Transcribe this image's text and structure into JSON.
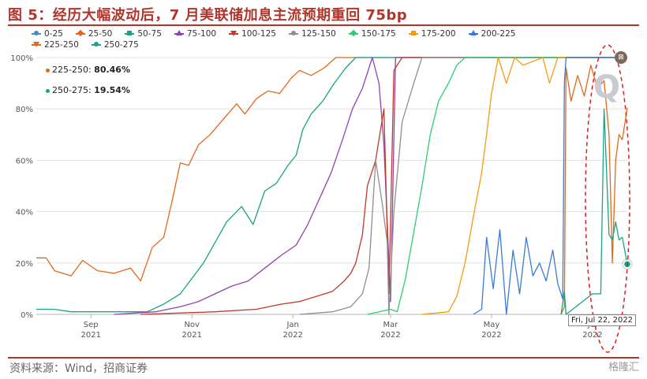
{
  "title": "图 5：经历大幅波动后，7 月美联储加息主流预期重回 75bp",
  "source": "资料来源：Wind，招商证券",
  "watermark": "格隆汇",
  "tooltip": {
    "date": "Fri, Jul 22, 2022",
    "rows": [
      {
        "label": "225-250:",
        "value": "80.46%",
        "color": "#e06a1b"
      },
      {
        "label": "250-275:",
        "value": "19.54%",
        "color": "#1aa384"
      }
    ]
  },
  "legend": [
    {
      "label": "0-25",
      "color": "#4a86c8",
      "marker": "dot"
    },
    {
      "label": "25-50",
      "color": "#e06a1b",
      "marker": "dia"
    },
    {
      "label": "50-75",
      "color": "#1aa384",
      "marker": "sq"
    },
    {
      "label": "75-100",
      "color": "#8e44ad",
      "marker": "tri"
    },
    {
      "label": "100-125",
      "color": "#c0392b",
      "marker": "tri-down"
    },
    {
      "label": "125-150",
      "color": "#8f8f8f",
      "marker": "dot"
    },
    {
      "label": "150-175",
      "color": "#2ecc71",
      "marker": "dia"
    },
    {
      "label": "175-200",
      "color": "#f39c12",
      "marker": "sq"
    },
    {
      "label": "200-225",
      "color": "#3a7bd5",
      "marker": "tri"
    },
    {
      "label": "225-250",
      "color": "#e06a1b",
      "marker": "tri-down"
    },
    {
      "label": "250-275",
      "color": "#1aa384",
      "marker": "dot"
    }
  ],
  "chart_data": {
    "type": "line",
    "xlabel": "",
    "ylabel": "",
    "ylim": [
      0,
      100
    ],
    "y_ticks": [
      "0%",
      "20%",
      "40%",
      "60%",
      "80%",
      "100%"
    ],
    "x_ticks": [
      {
        "label1": "Sep",
        "label2": "2021",
        "date": "2021-09-01"
      },
      {
        "label1": "Nov",
        "label2": "2021",
        "date": "2021-11-01"
      },
      {
        "label1": "Jan",
        "label2": "2022",
        "date": "2022-01-01"
      },
      {
        "label1": "Mar",
        "label2": "2022",
        "date": "2022-03-01"
      },
      {
        "label1": "May",
        "label2": "2022",
        "date": "2022-05-01"
      },
      {
        "label1": "Jul",
        "label2": "2022",
        "date": "2022-07-01"
      }
    ],
    "xlim": [
      "2021-07-30",
      "2022-07-22"
    ],
    "series": [
      {
        "name": "25-50",
        "color": "#e06a1b",
        "points": [
          [
            "2021-07-30",
            22
          ],
          [
            "2021-08-05",
            22
          ],
          [
            "2021-08-10",
            17
          ],
          [
            "2021-08-20",
            15
          ],
          [
            "2021-08-27",
            21
          ],
          [
            "2021-09-05",
            17
          ],
          [
            "2021-09-15",
            16
          ],
          [
            "2021-09-25",
            18
          ],
          [
            "2021-10-01",
            13
          ],
          [
            "2021-10-08",
            26
          ],
          [
            "2021-10-15",
            30
          ],
          [
            "2021-10-20",
            44
          ],
          [
            "2021-10-25",
            59
          ],
          [
            "2021-10-30",
            58
          ],
          [
            "2021-11-05",
            66
          ],
          [
            "2021-11-12",
            70
          ],
          [
            "2021-11-20",
            76
          ],
          [
            "2021-11-28",
            82
          ],
          [
            "2021-12-03",
            78
          ],
          [
            "2021-12-10",
            84
          ],
          [
            "2021-12-17",
            87
          ],
          [
            "2021-12-24",
            86
          ],
          [
            "2021-12-31",
            92
          ],
          [
            "2022-01-05",
            95
          ],
          [
            "2022-01-12",
            93
          ],
          [
            "2022-01-20",
            96
          ],
          [
            "2022-01-27",
            100
          ],
          [
            "2022-02-03",
            100
          ],
          [
            "2022-03-10",
            100
          ],
          [
            "2022-07-22",
            100
          ]
        ]
      },
      {
        "name": "50-75",
        "color": "#1aa384",
        "points": [
          [
            "2021-07-30",
            2
          ],
          [
            "2021-08-10",
            2
          ],
          [
            "2021-08-20",
            1
          ],
          [
            "2021-09-15",
            1
          ],
          [
            "2021-10-05",
            1
          ],
          [
            "2021-10-15",
            4
          ],
          [
            "2021-10-25",
            8
          ],
          [
            "2021-11-01",
            14
          ],
          [
            "2021-11-08",
            20
          ],
          [
            "2021-11-15",
            28
          ],
          [
            "2021-11-22",
            36
          ],
          [
            "2021-12-01",
            42
          ],
          [
            "2021-12-08",
            35
          ],
          [
            "2021-12-15",
            48
          ],
          [
            "2021-12-22",
            51
          ],
          [
            "2021-12-29",
            58
          ],
          [
            "2022-01-03",
            62
          ],
          [
            "2022-01-07",
            72
          ],
          [
            "2022-01-12",
            78
          ],
          [
            "2022-01-19",
            83
          ],
          [
            "2022-01-26",
            90
          ],
          [
            "2022-02-02",
            96
          ],
          [
            "2022-02-08",
            100
          ],
          [
            "2022-03-10",
            100
          ],
          [
            "2022-07-22",
            100
          ]
        ]
      },
      {
        "name": "75-100",
        "color": "#8e44ad",
        "points": [
          [
            "2021-09-15",
            0
          ],
          [
            "2021-10-10",
            1
          ],
          [
            "2021-10-25",
            3
          ],
          [
            "2021-11-05",
            5
          ],
          [
            "2021-11-15",
            8
          ],
          [
            "2021-11-25",
            11
          ],
          [
            "2021-12-05",
            13
          ],
          [
            "2021-12-15",
            18
          ],
          [
            "2021-12-25",
            23
          ],
          [
            "2022-01-03",
            27
          ],
          [
            "2022-01-10",
            35
          ],
          [
            "2022-01-17",
            45
          ],
          [
            "2022-01-24",
            55
          ],
          [
            "2022-01-31",
            68
          ],
          [
            "2022-02-06",
            80
          ],
          [
            "2022-02-12",
            88
          ],
          [
            "2022-02-18",
            100
          ],
          [
            "2022-02-22",
            90
          ],
          [
            "2022-02-25",
            66
          ],
          [
            "2022-03-01",
            5
          ],
          [
            "2022-03-04",
            100
          ],
          [
            "2022-07-22",
            100
          ]
        ]
      },
      {
        "name": "100-125",
        "color": "#c0392b",
        "points": [
          [
            "2021-10-01",
            0
          ],
          [
            "2021-11-15",
            1
          ],
          [
            "2021-12-10",
            2
          ],
          [
            "2021-12-25",
            4
          ],
          [
            "2022-01-05",
            5
          ],
          [
            "2022-01-15",
            7
          ],
          [
            "2022-01-25",
            9
          ],
          [
            "2022-02-01",
            13
          ],
          [
            "2022-02-05",
            16
          ],
          [
            "2022-02-08",
            20
          ],
          [
            "2022-02-12",
            31
          ],
          [
            "2022-02-15",
            50
          ],
          [
            "2022-02-20",
            60
          ],
          [
            "2022-02-25",
            80
          ],
          [
            "2022-02-28",
            8
          ],
          [
            "2022-03-03",
            95
          ],
          [
            "2022-03-08",
            100
          ],
          [
            "2022-07-22",
            100
          ]
        ]
      },
      {
        "name": "125-150",
        "color": "#8f8f8f",
        "points": [
          [
            "2022-01-05",
            0
          ],
          [
            "2022-01-25",
            1
          ],
          [
            "2022-02-05",
            3
          ],
          [
            "2022-02-12",
            8
          ],
          [
            "2022-02-16",
            18
          ],
          [
            "2022-02-20",
            60
          ],
          [
            "2022-02-24",
            43
          ],
          [
            "2022-02-27",
            28
          ],
          [
            "2022-02-28",
            0
          ],
          [
            "2022-03-03",
            40
          ],
          [
            "2022-03-08",
            75
          ],
          [
            "2022-03-15",
            90
          ],
          [
            "2022-03-20",
            100
          ],
          [
            "2022-07-22",
            100
          ]
        ]
      },
      {
        "name": "150-175",
        "color": "#2ecc71",
        "points": [
          [
            "2022-02-15",
            0
          ],
          [
            "2022-03-01",
            2
          ],
          [
            "2022-03-05",
            1
          ],
          [
            "2022-03-10",
            14
          ],
          [
            "2022-03-15",
            32
          ],
          [
            "2022-03-20",
            50
          ],
          [
            "2022-03-25",
            70
          ],
          [
            "2022-03-30",
            83
          ],
          [
            "2022-04-05",
            90
          ],
          [
            "2022-04-10",
            97
          ],
          [
            "2022-04-15",
            100
          ],
          [
            "2022-07-22",
            100
          ]
        ]
      },
      {
        "name": "175-200",
        "color": "#f39c12",
        "points": [
          [
            "2022-03-20",
            0
          ],
          [
            "2022-04-05",
            1
          ],
          [
            "2022-04-10",
            7
          ],
          [
            "2022-04-15",
            20
          ],
          [
            "2022-04-20",
            38
          ],
          [
            "2022-04-25",
            55
          ],
          [
            "2022-04-28",
            70
          ],
          [
            "2022-05-01",
            86
          ],
          [
            "2022-05-05",
            100
          ],
          [
            "2022-05-10",
            90
          ],
          [
            "2022-05-15",
            100
          ],
          [
            "2022-05-20",
            97
          ],
          [
            "2022-06-01",
            100
          ],
          [
            "2022-06-05",
            90
          ],
          [
            "2022-06-10",
            100
          ],
          [
            "2022-07-22",
            100
          ]
        ]
      },
      {
        "name": "200-225",
        "color": "#3a7bd5",
        "points": [
          [
            "2022-04-20",
            0
          ],
          [
            "2022-04-25",
            2
          ],
          [
            "2022-04-28",
            30
          ],
          [
            "2022-05-02",
            10
          ],
          [
            "2022-05-06",
            33
          ],
          [
            "2022-05-10",
            0
          ],
          [
            "2022-05-14",
            25
          ],
          [
            "2022-05-18",
            8
          ],
          [
            "2022-05-22",
            30
          ],
          [
            "2022-05-26",
            15
          ],
          [
            "2022-05-30",
            20
          ],
          [
            "2022-06-03",
            13
          ],
          [
            "2022-06-07",
            25
          ],
          [
            "2022-06-10",
            12
          ],
          [
            "2022-06-13",
            6
          ],
          [
            "2022-06-14",
            90
          ],
          [
            "2022-06-15",
            100
          ],
          [
            "2022-07-22",
            100
          ]
        ]
      },
      {
        "name": "225-250",
        "color": "#e06a1b",
        "points": [
          [
            "2022-06-12",
            0
          ],
          [
            "2022-06-14",
            3
          ],
          [
            "2022-06-15",
            96
          ],
          [
            "2022-06-18",
            83
          ],
          [
            "2022-06-22",
            93
          ],
          [
            "2022-06-26",
            85
          ],
          [
            "2022-06-30",
            97
          ],
          [
            "2022-07-04",
            88
          ],
          [
            "2022-07-08",
            91
          ],
          [
            "2022-07-11",
            70
          ],
          [
            "2022-07-13",
            20
          ],
          [
            "2022-07-15",
            60
          ],
          [
            "2022-07-17",
            70
          ],
          [
            "2022-07-19",
            68
          ],
          [
            "2022-07-22",
            80.46
          ]
        ]
      },
      {
        "name": "250-275",
        "color": "#1aa384",
        "points": [
          [
            "2022-06-12",
            0
          ],
          [
            "2022-06-14",
            9
          ],
          [
            "2022-06-15",
            0
          ],
          [
            "2022-07-01",
            8
          ],
          [
            "2022-07-06",
            8
          ],
          [
            "2022-07-08",
            80
          ],
          [
            "2022-07-11",
            31
          ],
          [
            "2022-07-13",
            29
          ],
          [
            "2022-07-15",
            36
          ],
          [
            "2022-07-17",
            29
          ],
          [
            "2022-07-19",
            30
          ],
          [
            "2022-07-22",
            19.54
          ]
        ]
      }
    ]
  }
}
